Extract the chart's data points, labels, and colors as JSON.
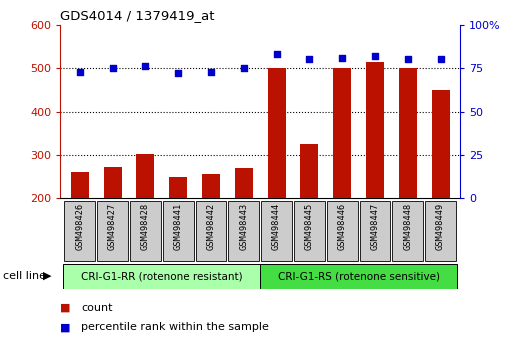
{
  "title": "GDS4014 / 1379419_at",
  "samples": [
    "GSM498426",
    "GSM498427",
    "GSM498428",
    "GSM498441",
    "GSM498442",
    "GSM498443",
    "GSM498444",
    "GSM498445",
    "GSM498446",
    "GSM498447",
    "GSM498448",
    "GSM498449"
  ],
  "counts": [
    260,
    272,
    302,
    250,
    255,
    270,
    500,
    325,
    500,
    515,
    500,
    450
  ],
  "percentiles": [
    73,
    75,
    76,
    72,
    73,
    75,
    83,
    80,
    81,
    82,
    80,
    80
  ],
  "group1_label": "CRI-G1-RR (rotenone resistant)",
  "group2_label": "CRI-G1-RS (rotenone sensitive)",
  "group1_count": 6,
  "group2_count": 6,
  "ylim_left": [
    200,
    600
  ],
  "ylim_right": [
    0,
    100
  ],
  "yticks_left": [
    200,
    300,
    400,
    500,
    600
  ],
  "yticks_right": [
    0,
    25,
    50,
    75,
    100
  ],
  "bar_color": "#bb1100",
  "dot_color": "#0000cc",
  "group1_bg": "#aaffaa",
  "group2_bg": "#44dd44",
  "xticklabel_bg": "#cccccc",
  "legend_count_label": "count",
  "legend_pct_label": "percentile rank within the sample",
  "cell_line_label": "cell line"
}
